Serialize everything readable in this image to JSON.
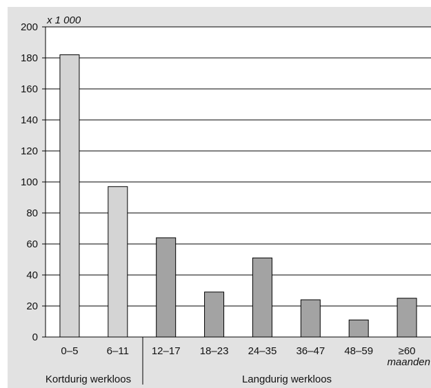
{
  "chart_data": {
    "type": "bar",
    "unit_label": "x 1 000",
    "x_unit": "maanden",
    "categories": [
      "0–5",
      "6–11",
      "12–17",
      "18–23",
      "24–35",
      "36–47",
      "48–59",
      "≥60"
    ],
    "values": [
      182,
      97,
      64,
      29,
      51,
      24,
      11,
      25
    ],
    "groups": [
      {
        "label": "Kortdurig werkloos",
        "categories": [
          "0–5",
          "6–11"
        ]
      },
      {
        "label": "Langdurig werkloos",
        "categories": [
          "12–17",
          "18–23",
          "24–35",
          "36–47",
          "48–59",
          "≥60"
        ]
      }
    ],
    "ylim": [
      0,
      200
    ],
    "yticks": [
      0,
      20,
      40,
      60,
      80,
      100,
      120,
      140,
      160,
      180,
      200
    ],
    "grid": true,
    "colors": {
      "short_term_bar": "#d4d4d4",
      "long_term_bar": "#a3a3a3",
      "panel_background": "#e2e2e2",
      "plot_background": "#ffffff"
    }
  }
}
